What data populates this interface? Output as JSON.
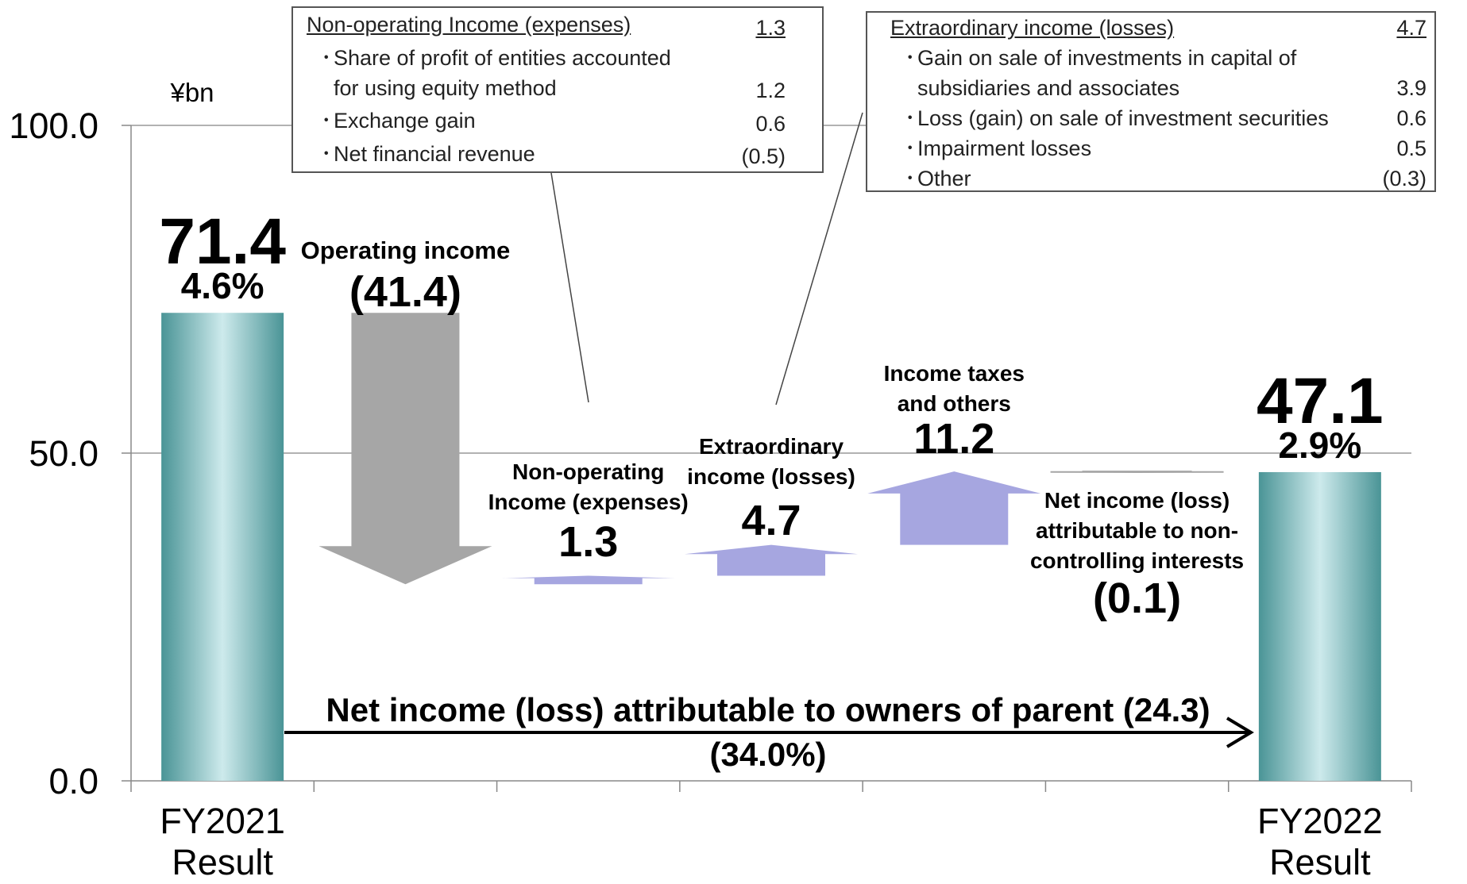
{
  "chart_data": {
    "type": "waterfall",
    "y_label": "¥bn",
    "categories": [
      "FY2021\nResult",
      "Operating income",
      "Non-operating\nIncome (expenses)",
      "Extraordinary\nincome (losses)",
      "Income taxes\nand others",
      "Net income (loss)\nattributable to non-\ncontrolling interests",
      "FY2022\nResult"
    ],
    "values": [
      71.4,
      -41.4,
      1.3,
      4.7,
      11.2,
      -0.1,
      47.1
    ],
    "value_labels": [
      "71.4",
      "(41.4)",
      "1.3",
      "4.7",
      "11.2",
      "(0.1)",
      "47.1"
    ],
    "totals": [
      true,
      false,
      false,
      false,
      false,
      false,
      true
    ],
    "margin_labels": [
      "4.6%",
      null,
      null,
      null,
      null,
      null,
      "2.9%"
    ],
    "total_color": "#4a9496",
    "increase_color": "#a6a6e0",
    "decrease_color": "#a6a6a6",
    "ylim": [
      0,
      100
    ],
    "yticks": [
      {
        "value": 0,
        "label": "0.0"
      },
      {
        "value": 50,
        "label": "50.0"
      },
      {
        "value": 100,
        "label": "100.0"
      }
    ],
    "grid": true,
    "bridge": {
      "text": "Net income (loss) attributable to owners of parent (24.3)",
      "subtext": "(34.0%)"
    }
  },
  "callouts": [
    {
      "title": "Non-operating Income (expenses)",
      "value": "1.3",
      "items": [
        {
          "label": "Share of profit of entities accounted\nfor using equity method",
          "value": "1.2"
        },
        {
          "label": "Exchange gain",
          "value": "0.6"
        },
        {
          "label": "Net financial revenue",
          "value": "(0.5)"
        }
      ]
    },
    {
      "title": "Extraordinary  income (losses)",
      "value": "4.7",
      "items": [
        {
          "label": "Gain on sale of investments in capital of\nsubsidiaries and associates",
          "value": "3.9"
        },
        {
          "label": "Loss (gain) on sale of investment securities",
          "value": "0.6"
        },
        {
          "label": "Impairment losses",
          "value": "0.5"
        },
        {
          "label": "Other",
          "value": "(0.3)"
        }
      ]
    }
  ]
}
